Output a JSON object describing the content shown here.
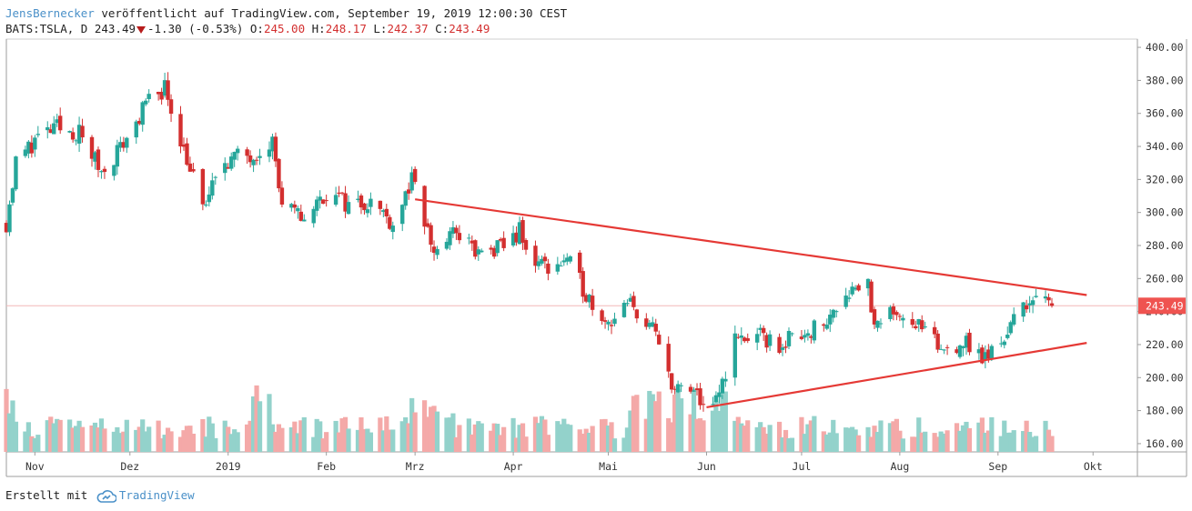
{
  "header": {
    "author": "JensBernecker",
    "published": "veröffentlicht auf TradingView.com, September 19, 2019 12:00:30 CEST",
    "symbol": "BATS:TSLA, D",
    "last": "243.49",
    "change": "-1.30 (-0.53%)",
    "o_label": "O:",
    "o_value": "245.00",
    "h_label": "H:",
    "h_value": "248.17",
    "l_label": "L:",
    "l_value": "242.37",
    "c_label": "C:",
    "c_value": "243.49"
  },
  "footer": {
    "prefix": "Erstellt mit",
    "brand": "TradingView",
    "logo_icon": "tradingview-cloud-icon"
  },
  "colors": {
    "up": "#26a69a",
    "down": "#d32f2f",
    "vol_up": "#93d2cb",
    "vol_down": "#f4a9a8",
    "trendline": "#e53935",
    "price_tag": "#ef5350"
  },
  "chart_data": {
    "type": "candlestick",
    "y_axis": {
      "min": 155,
      "max": 405,
      "ticks": [
        "160.00",
        "180.00",
        "200.00",
        "220.00",
        "240.00",
        "260.00",
        "280.00",
        "300.00",
        "320.00",
        "340.00",
        "360.00",
        "380.00",
        "400.00"
      ]
    },
    "x_axis": {
      "start": "2018-10-23",
      "end": "2019-10-15",
      "ticks": [
        {
          "label": "Nov",
          "date": "2018-11-01"
        },
        {
          "label": "Dez",
          "date": "2018-12-01"
        },
        {
          "label": "2019",
          "date": "2019-01-01"
        },
        {
          "label": "Feb",
          "date": "2019-02-01"
        },
        {
          "label": "Mrz",
          "date": "2019-03-01"
        },
        {
          "label": "Apr",
          "date": "2019-04-01"
        },
        {
          "label": "Mai",
          "date": "2019-05-01"
        },
        {
          "label": "Jun",
          "date": "2019-06-01"
        },
        {
          "label": "Jul",
          "date": "2019-07-01"
        },
        {
          "label": "Aug",
          "date": "2019-08-01"
        },
        {
          "label": "Sep",
          "date": "2019-09-01"
        },
        {
          "label": "Okt",
          "date": "2019-10-01"
        }
      ]
    },
    "last_price_tag": "243.49",
    "closes": [
      {
        "date": "2018-10-23",
        "close": 294
      },
      {
        "date": "2018-10-26",
        "close": 330
      },
      {
        "date": "2018-11-01",
        "close": 344
      },
      {
        "date": "2018-11-08",
        "close": 351
      },
      {
        "date": "2018-11-15",
        "close": 348
      },
      {
        "date": "2018-11-22",
        "close": 325
      },
      {
        "date": "2018-11-29",
        "close": 342
      },
      {
        "date": "2018-12-06",
        "close": 365
      },
      {
        "date": "2018-12-12",
        "close": 376
      },
      {
        "date": "2018-12-17",
        "close": 345
      },
      {
        "date": "2018-12-24",
        "close": 302
      },
      {
        "date": "2018-12-31",
        "close": 332
      },
      {
        "date": "2019-01-08",
        "close": 335
      },
      {
        "date": "2019-01-15",
        "close": 344
      },
      {
        "date": "2019-01-18",
        "close": 302
      },
      {
        "date": "2019-01-25",
        "close": 297
      },
      {
        "date": "2019-02-01",
        "close": 312
      },
      {
        "date": "2019-02-08",
        "close": 305
      },
      {
        "date": "2019-02-15",
        "close": 307
      },
      {
        "date": "2019-02-22",
        "close": 294
      },
      {
        "date": "2019-02-28",
        "close": 319
      },
      {
        "date": "2019-03-07",
        "close": 276
      },
      {
        "date": "2019-03-14",
        "close": 289
      },
      {
        "date": "2019-03-21",
        "close": 274
      },
      {
        "date": "2019-03-28",
        "close": 278
      },
      {
        "date": "2019-04-03",
        "close": 289
      },
      {
        "date": "2019-04-05",
        "close": 275
      },
      {
        "date": "2019-04-12",
        "close": 267
      },
      {
        "date": "2019-04-18",
        "close": 271
      },
      {
        "date": "2019-04-25",
        "close": 248
      },
      {
        "date": "2019-05-01",
        "close": 234
      },
      {
        "date": "2019-05-08",
        "close": 244
      },
      {
        "date": "2019-05-15",
        "close": 229
      },
      {
        "date": "2019-05-22",
        "close": 193
      },
      {
        "date": "2019-05-29",
        "close": 189
      },
      {
        "date": "2019-06-03",
        "close": 179
      },
      {
        "date": "2019-06-10",
        "close": 223
      },
      {
        "date": "2019-06-17",
        "close": 225
      },
      {
        "date": "2019-06-24",
        "close": 219
      },
      {
        "date": "2019-07-01",
        "close": 228
      },
      {
        "date": "2019-07-08",
        "close": 231
      },
      {
        "date": "2019-07-15",
        "close": 253
      },
      {
        "date": "2019-07-22",
        "close": 258
      },
      {
        "date": "2019-07-24",
        "close": 228
      },
      {
        "date": "2019-07-31",
        "close": 242
      },
      {
        "date": "2019-08-07",
        "close": 231
      },
      {
        "date": "2019-08-14",
        "close": 216
      },
      {
        "date": "2019-08-21",
        "close": 222
      },
      {
        "date": "2019-08-28",
        "close": 211
      },
      {
        "date": "2019-09-04",
        "close": 228
      },
      {
        "date": "2019-09-10",
        "close": 247
      },
      {
        "date": "2019-09-13",
        "close": 246
      },
      {
        "date": "2019-09-18",
        "close": 243.49
      }
    ],
    "trendlines": [
      {
        "name": "",
        "from": {
          "date": "2019-03-01",
          "price": 308
        },
        "to": {
          "date": "2019-09-29",
          "price": 250
        }
      },
      {
        "name": "",
        "from": {
          "date": "2019-06-01",
          "price": 182
        },
        "to": {
          "date": "2019-09-29",
          "price": 221
        }
      }
    ]
  }
}
